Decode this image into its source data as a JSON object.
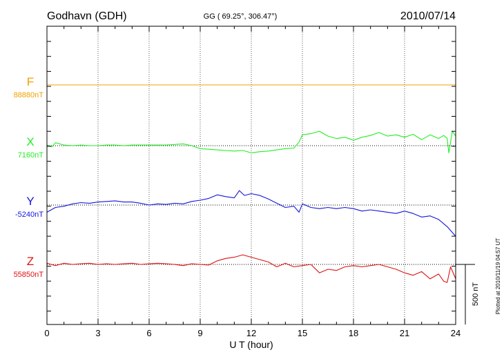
{
  "chart_data": {
    "type": "line",
    "station": "Godhavn (GDH)",
    "coords": "GG ( 69.25°, 306.47°)",
    "date": "2010/07/14",
    "xlabel": "U T (hour)",
    "xlim": [
      0,
      24
    ],
    "xticks": [
      "0",
      "3",
      "6",
      "9",
      "12",
      "15",
      "18",
      "21",
      "24"
    ],
    "grid": true,
    "scale_bar": "500 nT",
    "plotted_note": "Plotted at 2010/11/19 04:57 UT",
    "series": [
      {
        "name": "F",
        "baseline_label": "88880nT",
        "color": "#f0a000",
        "x": [
          0,
          24
        ],
        "y": [
          0,
          0
        ]
      },
      {
        "name": "X",
        "baseline_label": "7160nT",
        "color": "#22ee22",
        "x": [
          0,
          0.3,
          0.5,
          1,
          1.5,
          2,
          2.5,
          3,
          3.5,
          4,
          4.5,
          5,
          5.5,
          6,
          6.5,
          7,
          7.5,
          8,
          8.5,
          9,
          9.5,
          10,
          10.5,
          11,
          11.5,
          12,
          12.5,
          13,
          13.5,
          14,
          14.5,
          14.8,
          15,
          15.5,
          16,
          16.5,
          17,
          17.5,
          18,
          18.5,
          19,
          19.5,
          20,
          20.5,
          21,
          21.5,
          22,
          22.5,
          23,
          23.3,
          23.5,
          23.6,
          23.8,
          24
        ],
        "y": [
          5,
          -10,
          25,
          5,
          0,
          5,
          0,
          0,
          5,
          5,
          0,
          5,
          5,
          5,
          5,
          5,
          10,
          15,
          0,
          -25,
          -30,
          -35,
          -40,
          -45,
          -40,
          -60,
          -50,
          -45,
          -35,
          -25,
          -20,
          30,
          90,
          100,
          120,
          80,
          60,
          70,
          45,
          70,
          85,
          110,
          80,
          90,
          70,
          95,
          50,
          90,
          60,
          85,
          60,
          -60,
          120,
          80
        ]
      },
      {
        "name": "Y",
        "baseline_label": "-5240nT",
        "color": "#1414dd",
        "x": [
          0,
          0.5,
          1,
          1.5,
          2,
          2.5,
          3,
          3.5,
          4,
          4.5,
          5,
          5.5,
          6,
          6.5,
          7,
          7.5,
          8,
          8.5,
          9,
          9.5,
          10,
          10.5,
          11,
          11.3,
          11.6,
          12,
          12.5,
          13,
          13.5,
          14,
          14.5,
          14.8,
          15,
          15.5,
          16,
          16.5,
          17,
          17.5,
          18,
          18.5,
          19,
          19.5,
          20,
          20.5,
          21,
          21.5,
          22,
          22.5,
          23,
          23.5,
          24
        ],
        "y": [
          -60,
          -20,
          -10,
          10,
          20,
          15,
          25,
          30,
          35,
          25,
          25,
          15,
          0,
          10,
          5,
          15,
          10,
          30,
          40,
          55,
          85,
          70,
          60,
          120,
          80,
          95,
          80,
          50,
          15,
          -20,
          -10,
          -60,
          10,
          -20,
          -30,
          -20,
          -30,
          -20,
          -30,
          -50,
          -40,
          -50,
          -60,
          -70,
          -50,
          -70,
          -100,
          -90,
          -120,
          -180,
          -260
        ]
      },
      {
        "name": "Z",
        "baseline_label": "55850nT",
        "color": "#e01010",
        "x": [
          0,
          0.5,
          1,
          1.5,
          2,
          2.5,
          3,
          3.5,
          4,
          4.5,
          5,
          5.5,
          6,
          6.5,
          7,
          7.5,
          8,
          8.5,
          9,
          9.5,
          10,
          10.5,
          11,
          11.5,
          12,
          12.5,
          13,
          13.5,
          14,
          14.5,
          15,
          15.5,
          16,
          16.5,
          17,
          17.5,
          18,
          18.5,
          19,
          19.5,
          20,
          20.5,
          21,
          21.5,
          22,
          22.5,
          23,
          23.3,
          23.5,
          23.7,
          24
        ],
        "y": [
          10,
          -10,
          10,
          0,
          5,
          10,
          0,
          5,
          0,
          5,
          10,
          0,
          5,
          10,
          5,
          0,
          -10,
          5,
          0,
          -5,
          30,
          50,
          60,
          80,
          60,
          40,
          20,
          -20,
          10,
          -20,
          -10,
          0,
          -70,
          -40,
          -50,
          -20,
          -10,
          -20,
          -10,
          0,
          -20,
          -40,
          -70,
          -90,
          -60,
          -120,
          -80,
          -140,
          -150,
          -20,
          -120
        ]
      }
    ]
  }
}
